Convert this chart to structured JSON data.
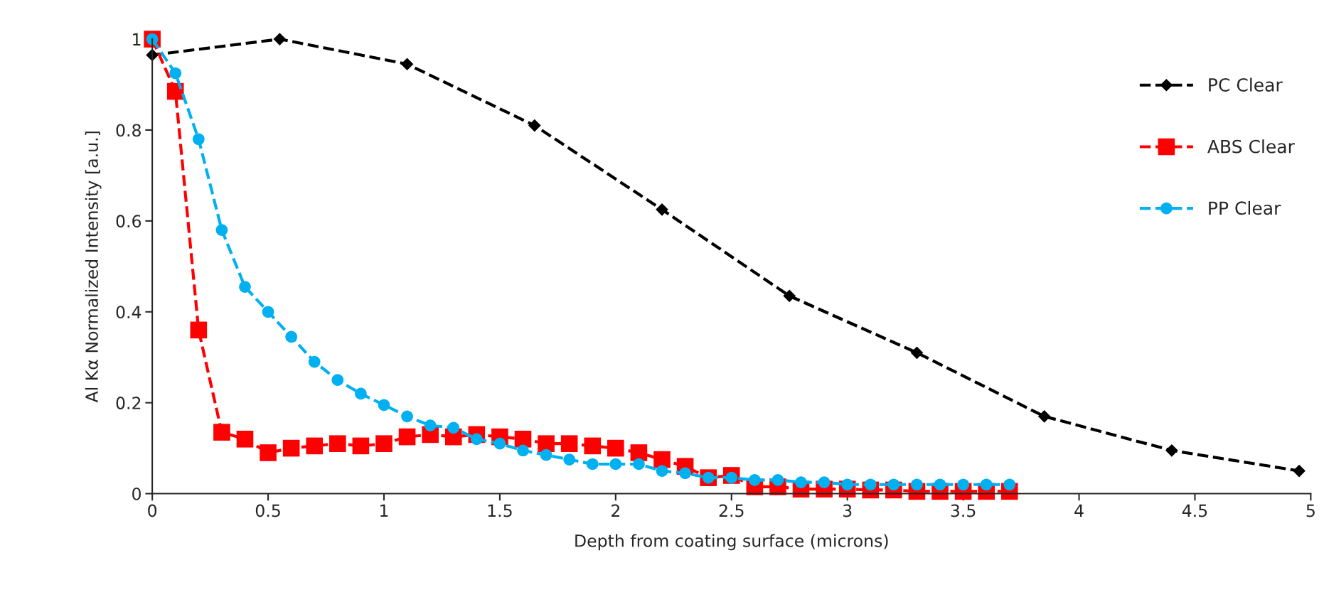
{
  "chart_data": {
    "type": "line",
    "xlabel": "Depth from coating surface (microns)",
    "ylabel": "Al Kα Normalized Intensity [a.u.]",
    "xlim": [
      0,
      5
    ],
    "ylim": [
      0,
      1
    ],
    "xticks": [
      0,
      0.5,
      1,
      1.5,
      2,
      2.5,
      3,
      3.5,
      4,
      4.5,
      5
    ],
    "yticks": [
      0,
      0.2,
      0.4,
      0.6,
      0.8,
      1
    ],
    "grid": false,
    "legend": "top right",
    "line_style": "dashed",
    "series": [
      {
        "name": "PC Clear",
        "color": "#000000",
        "marker": "diamond",
        "x": [
          0,
          0.55,
          1.1,
          1.65,
          2.2,
          2.75,
          3.3,
          3.85,
          4.4,
          4.95
        ],
        "values": [
          0.965,
          1.0,
          0.945,
          0.81,
          0.625,
          0.435,
          0.31,
          0.17,
          0.095,
          0.05
        ]
      },
      {
        "name": "ABS Clear",
        "color": "#ff0000",
        "marker": "square",
        "x": [
          0,
          0.1,
          0.2,
          0.3,
          0.4,
          0.5,
          0.6,
          0.7,
          0.8,
          0.9,
          1.0,
          1.1,
          1.2,
          1.3,
          1.4,
          1.5,
          1.6,
          1.7,
          1.8,
          1.9,
          2.0,
          2.1,
          2.2,
          2.3,
          2.4,
          2.5,
          2.6,
          2.7,
          2.8,
          2.9,
          3.0,
          3.1,
          3.2,
          3.3,
          3.4,
          3.5,
          3.6,
          3.7
        ],
        "values": [
          1.0,
          0.885,
          0.36,
          0.135,
          0.12,
          0.09,
          0.1,
          0.105,
          0.11,
          0.105,
          0.11,
          0.125,
          0.13,
          0.125,
          0.13,
          0.125,
          0.12,
          0.11,
          0.11,
          0.105,
          0.1,
          0.09,
          0.075,
          0.06,
          0.035,
          0.04,
          0.015,
          0.015,
          0.01,
          0.01,
          0.01,
          0.008,
          0.008,
          0.005,
          0.005,
          0.005,
          0.005,
          0.005
        ]
      },
      {
        "name": "PP Clear",
        "color": "#00b0f0",
        "marker": "circle",
        "x": [
          0,
          0.1,
          0.2,
          0.3,
          0.4,
          0.5,
          0.6,
          0.7,
          0.8,
          0.9,
          1.0,
          1.1,
          1.2,
          1.3,
          1.4,
          1.5,
          1.6,
          1.7,
          1.8,
          1.9,
          2.0,
          2.1,
          2.2,
          2.3,
          2.4,
          2.5,
          2.6,
          2.7,
          2.8,
          2.9,
          3.0,
          3.1,
          3.2,
          3.3,
          3.4,
          3.5,
          3.6,
          3.7
        ],
        "values": [
          1.0,
          0.925,
          0.78,
          0.58,
          0.455,
          0.4,
          0.345,
          0.29,
          0.25,
          0.22,
          0.195,
          0.17,
          0.15,
          0.145,
          0.12,
          0.11,
          0.095,
          0.085,
          0.075,
          0.065,
          0.065,
          0.065,
          0.05,
          0.045,
          0.035,
          0.035,
          0.03,
          0.03,
          0.025,
          0.025,
          0.02,
          0.02,
          0.02,
          0.02,
          0.02,
          0.02,
          0.02,
          0.02
        ]
      }
    ]
  }
}
